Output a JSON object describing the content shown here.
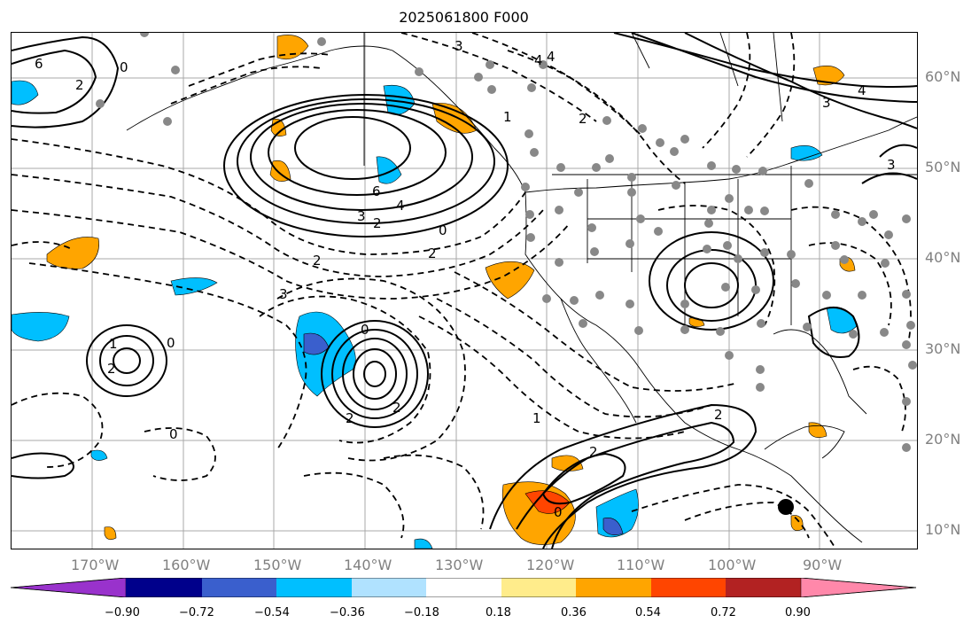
{
  "title": "2025061800 F000",
  "lat_labels": [
    "60°N",
    "50°N",
    "40°N",
    "30°N",
    "20°N",
    "10°N"
  ],
  "lon_labels": [
    "170°W",
    "160°W",
    "150°W",
    "140°W",
    "130°W",
    "120°W",
    "110°W",
    "100°W",
    "90°W"
  ],
  "colorbar": {
    "ticks": [
      "−0.90",
      "−0.72",
      "−0.54",
      "−0.36",
      "−0.18",
      "0.18",
      "0.36",
      "0.54",
      "0.72",
      "0.90"
    ],
    "colors": [
      "#9932cc",
      "#00008b",
      "#3a5fcd",
      "#00bfff",
      "#b0e2ff",
      "#ffffff",
      "#ffec8b",
      "#ffa500",
      "#ff4500",
      "#b22222",
      "#ff88aa"
    ]
  },
  "contour_labels": [
    "6",
    "4",
    "3",
    "2",
    "0",
    "2",
    "3",
    "4",
    "2",
    "2",
    "0",
    "1",
    "2",
    "2",
    "0",
    "0",
    "2",
    "3",
    "4",
    "6",
    "0",
    "1",
    "2",
    "3",
    "2",
    "1",
    "0",
    "4",
    "3",
    "2"
  ]
}
